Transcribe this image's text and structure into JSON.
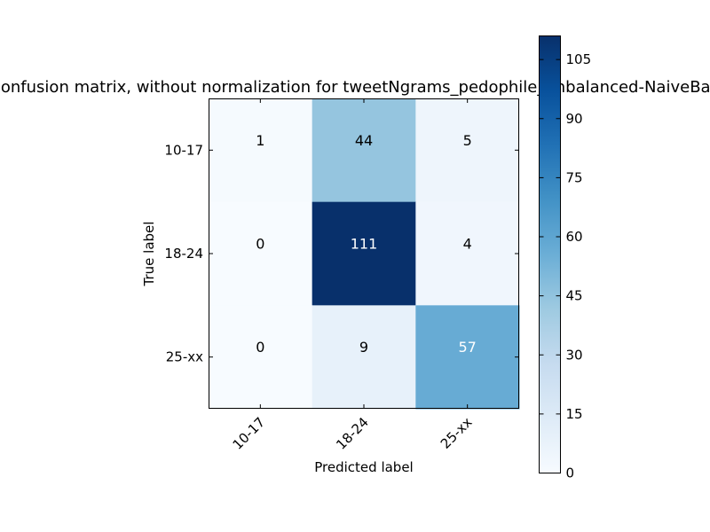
{
  "chart_data": {
    "type": "heatmap",
    "title": "Confusion matrix, without normalization for tweetNgrams_pedophile_unbalanced-NaiveBayes",
    "xlabel": "Predicted label",
    "ylabel": "True label",
    "x_categories": [
      "10-17",
      "18-24",
      "25-xx"
    ],
    "y_categories": [
      "10-17",
      "18-24",
      "25-xx"
    ],
    "values": [
      [
        1,
        44,
        5
      ],
      [
        0,
        111,
        4
      ],
      [
        0,
        9,
        57
      ]
    ],
    "colormap": "Blues",
    "colorbar": {
      "min": 0,
      "max": 111,
      "ticks": [
        0,
        15,
        30,
        45,
        60,
        75,
        90,
        105
      ]
    }
  }
}
